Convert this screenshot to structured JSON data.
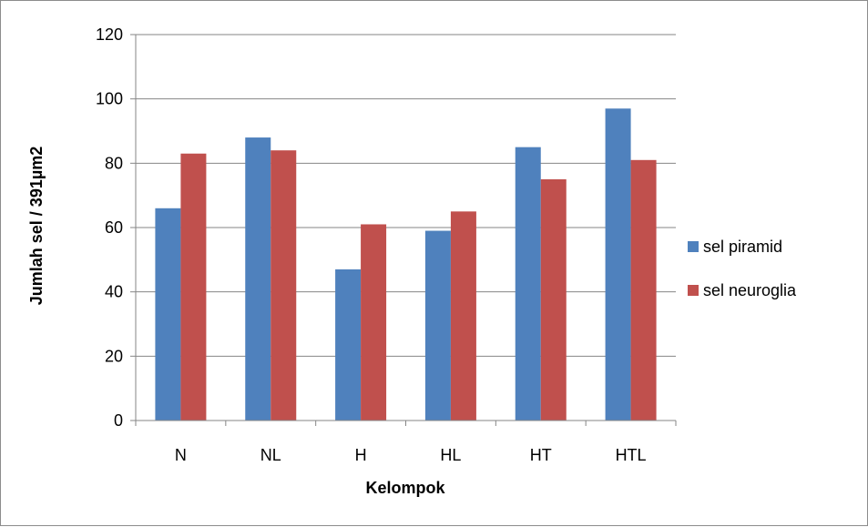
{
  "chart_data": {
    "type": "bar",
    "title": "",
    "xlabel": "Kelompok",
    "ylabel": "Jumlah sel  / 391µm2",
    "categories": [
      "N",
      "NL",
      "H",
      "HL",
      "HT",
      "HTL"
    ],
    "ylim": [
      0,
      120
    ],
    "yticks": [
      0,
      20,
      40,
      60,
      80,
      100,
      120
    ],
    "grid": true,
    "legend_position": "right",
    "series": [
      {
        "name": "sel piramid",
        "color": "#4f81bd",
        "values": [
          66,
          88,
          47,
          59,
          85,
          97
        ]
      },
      {
        "name": "sel neuroglia",
        "color": "#c0504d",
        "values": [
          83,
          84,
          61,
          65,
          75,
          81
        ]
      }
    ]
  }
}
